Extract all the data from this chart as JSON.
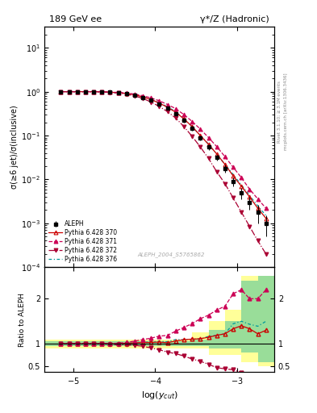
{
  "title_left": "189 GeV ee",
  "title_right": "γ*/Z (Hadronic)",
  "ylabel_main": "σ(≥6 jet)/σ(inclusive)",
  "ylabel_ratio": "Ratio to ALEPH",
  "xlabel": "log($y_{cut}$)",
  "right_label_top": "Rivet 3.1.10; ≥ 3.1M events",
  "right_label_bottom": "mcplots.cern.ch [arXiv:1306.3436]",
  "watermark": "ALEPH_2004_S5765862",
  "xlim": [
    -5.35,
    -2.55
  ],
  "ylim_main": [
    0.0001,
    30
  ],
  "ylim_ratio": [
    0.38,
    2.7
  ],
  "aleph_x": [
    -5.15,
    -5.05,
    -4.95,
    -4.85,
    -4.75,
    -4.65,
    -4.55,
    -4.45,
    -4.35,
    -4.25,
    -4.15,
    -4.05,
    -3.95,
    -3.85,
    -3.75,
    -3.65,
    -3.55,
    -3.45,
    -3.35,
    -3.25,
    -3.15,
    -3.05,
    -2.95,
    -2.85,
    -2.75,
    -2.65
  ],
  "aleph_y": [
    1.0,
    1.0,
    1.0,
    1.0,
    1.0,
    0.99,
    0.97,
    0.95,
    0.9,
    0.83,
    0.74,
    0.64,
    0.53,
    0.43,
    0.32,
    0.22,
    0.145,
    0.09,
    0.055,
    0.032,
    0.018,
    0.009,
    0.005,
    0.003,
    0.0018,
    0.001
  ],
  "aleph_yerr": [
    0.01,
    0.01,
    0.01,
    0.01,
    0.01,
    0.01,
    0.02,
    0.02,
    0.025,
    0.025,
    0.03,
    0.03,
    0.03,
    0.03,
    0.025,
    0.02,
    0.018,
    0.012,
    0.008,
    0.005,
    0.004,
    0.002,
    0.0015,
    0.001,
    0.0008,
    0.0005
  ],
  "pythia370_x": [
    -5.15,
    -5.05,
    -4.95,
    -4.85,
    -4.75,
    -4.65,
    -4.55,
    -4.45,
    -4.35,
    -4.25,
    -4.15,
    -4.05,
    -3.95,
    -3.85,
    -3.75,
    -3.65,
    -3.55,
    -3.45,
    -3.35,
    -3.25,
    -3.15,
    -3.05,
    -2.95,
    -2.85,
    -2.75,
    -2.65
  ],
  "pythia370_y": [
    1.0,
    1.0,
    1.0,
    1.0,
    1.0,
    0.99,
    0.97,
    0.95,
    0.91,
    0.85,
    0.76,
    0.66,
    0.55,
    0.44,
    0.34,
    0.24,
    0.16,
    0.1,
    0.063,
    0.038,
    0.022,
    0.012,
    0.007,
    0.004,
    0.0022,
    0.0013
  ],
  "pythia371_x": [
    -5.15,
    -5.05,
    -4.95,
    -4.85,
    -4.75,
    -4.65,
    -4.55,
    -4.45,
    -4.35,
    -4.25,
    -4.15,
    -4.05,
    -3.95,
    -3.85,
    -3.75,
    -3.65,
    -3.55,
    -3.45,
    -3.35,
    -3.25,
    -3.15,
    -3.05,
    -2.95,
    -2.85,
    -2.75,
    -2.65
  ],
  "pythia371_y": [
    1.0,
    1.0,
    1.0,
    1.0,
    1.0,
    0.99,
    0.98,
    0.96,
    0.93,
    0.88,
    0.81,
    0.72,
    0.62,
    0.51,
    0.41,
    0.3,
    0.21,
    0.14,
    0.09,
    0.056,
    0.033,
    0.019,
    0.011,
    0.006,
    0.0036,
    0.0022
  ],
  "pythia372_x": [
    -5.15,
    -5.05,
    -4.95,
    -4.85,
    -4.75,
    -4.65,
    -4.55,
    -4.45,
    -4.35,
    -4.25,
    -4.15,
    -4.05,
    -3.95,
    -3.85,
    -3.75,
    -3.65,
    -3.55,
    -3.45,
    -3.35,
    -3.25,
    -3.15,
    -3.05,
    -2.95,
    -2.85,
    -2.75,
    -2.65
  ],
  "pythia372_y": [
    1.0,
    1.0,
    1.0,
    1.0,
    1.0,
    0.99,
    0.96,
    0.93,
    0.88,
    0.8,
    0.7,
    0.58,
    0.46,
    0.35,
    0.25,
    0.16,
    0.096,
    0.055,
    0.03,
    0.015,
    0.008,
    0.0038,
    0.0018,
    0.00085,
    0.0004,
    0.0002
  ],
  "pythia376_x": [
    -5.15,
    -5.05,
    -4.95,
    -4.85,
    -4.75,
    -4.65,
    -4.55,
    -4.45,
    -4.35,
    -4.25,
    -4.15,
    -4.05,
    -3.95,
    -3.85,
    -3.75,
    -3.65,
    -3.55,
    -3.45,
    -3.35,
    -3.25,
    -3.15,
    -3.05,
    -2.95,
    -2.85,
    -2.75,
    -2.65
  ],
  "pythia376_y": [
    1.0,
    1.0,
    1.0,
    1.0,
    1.0,
    0.99,
    0.97,
    0.95,
    0.91,
    0.85,
    0.77,
    0.67,
    0.56,
    0.45,
    0.35,
    0.24,
    0.16,
    0.1,
    0.064,
    0.038,
    0.022,
    0.013,
    0.0075,
    0.0043,
    0.0025,
    0.0015
  ],
  "color_370": "#cc0000",
  "color_371": "#cc0055",
  "color_372": "#aa0033",
  "color_376": "#009999",
  "color_aleph": "#000000",
  "ratio_band_x_edges": [
    -5.35,
    -5.15,
    -4.95,
    -4.75,
    -4.55,
    -4.35,
    -4.15,
    -3.95,
    -3.75,
    -3.55,
    -3.35,
    -3.15,
    -2.95,
    -2.75,
    -2.55
  ],
  "ratio_band_yellow_lo": [
    0.9,
    0.9,
    0.9,
    0.9,
    0.9,
    0.9,
    0.9,
    0.9,
    0.9,
    0.9,
    0.75,
    0.75,
    0.6,
    0.5
  ],
  "ratio_band_yellow_hi": [
    1.1,
    1.1,
    1.1,
    1.1,
    1.1,
    1.1,
    1.1,
    1.1,
    1.1,
    1.25,
    1.5,
    1.75,
    2.5,
    2.5
  ],
  "ratio_band_green_lo": [
    0.95,
    0.95,
    0.95,
    0.95,
    0.95,
    0.95,
    0.95,
    0.95,
    0.95,
    0.95,
    0.9,
    0.9,
    0.8,
    0.6
  ],
  "ratio_band_green_hi": [
    1.05,
    1.05,
    1.05,
    1.05,
    1.05,
    1.05,
    1.05,
    1.05,
    1.05,
    1.1,
    1.3,
    1.5,
    2.4,
    2.5
  ]
}
